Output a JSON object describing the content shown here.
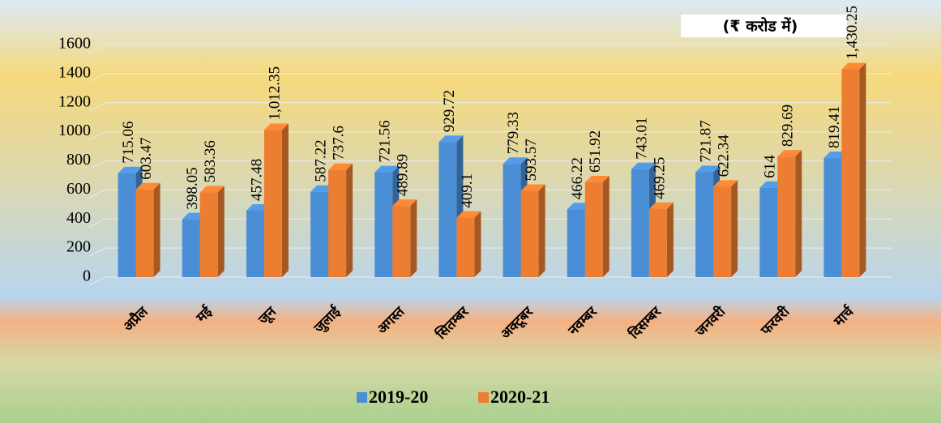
{
  "chart_data": {
    "type": "bar3d",
    "annotation": "(₹ करोड  में)",
    "categories": [
      "अप्रैल",
      "मई",
      "जून",
      "जुलाई",
      "अगस्त",
      "सितम्बर",
      "अक्टूबर",
      "नवम्बर",
      "दिसम्बर",
      "जनवरी",
      "फरवरी",
      "मार्च"
    ],
    "series": [
      {
        "name": "2019-20",
        "color": "#4a8fd6",
        "values": [
          715.06,
          398.05,
          457.48,
          587.22,
          721.56,
          929.72,
          779.33,
          466.22,
          743.01,
          721.87,
          614,
          819.41
        ]
      },
      {
        "name": "2020-21",
        "color": "#ed7d31",
        "values": [
          603.47,
          583.36,
          1012.35,
          737.6,
          489.89,
          409.1,
          593.57,
          651.92,
          469.25,
          622.34,
          829.69,
          1430.25
        ],
        "value_labels": [
          "603.47",
          "583.36",
          "1,012.35",
          "737.6",
          "489.89",
          "409.1",
          "593.57",
          "651.92",
          "469.25",
          "622.34",
          "829.69",
          "1,430.25"
        ]
      }
    ],
    "ylim": [
      0,
      1600
    ],
    "yticks": [
      0,
      200,
      400,
      600,
      800,
      1000,
      1200,
      1400,
      1600
    ],
    "grid": true,
    "legend": "bottom"
  }
}
